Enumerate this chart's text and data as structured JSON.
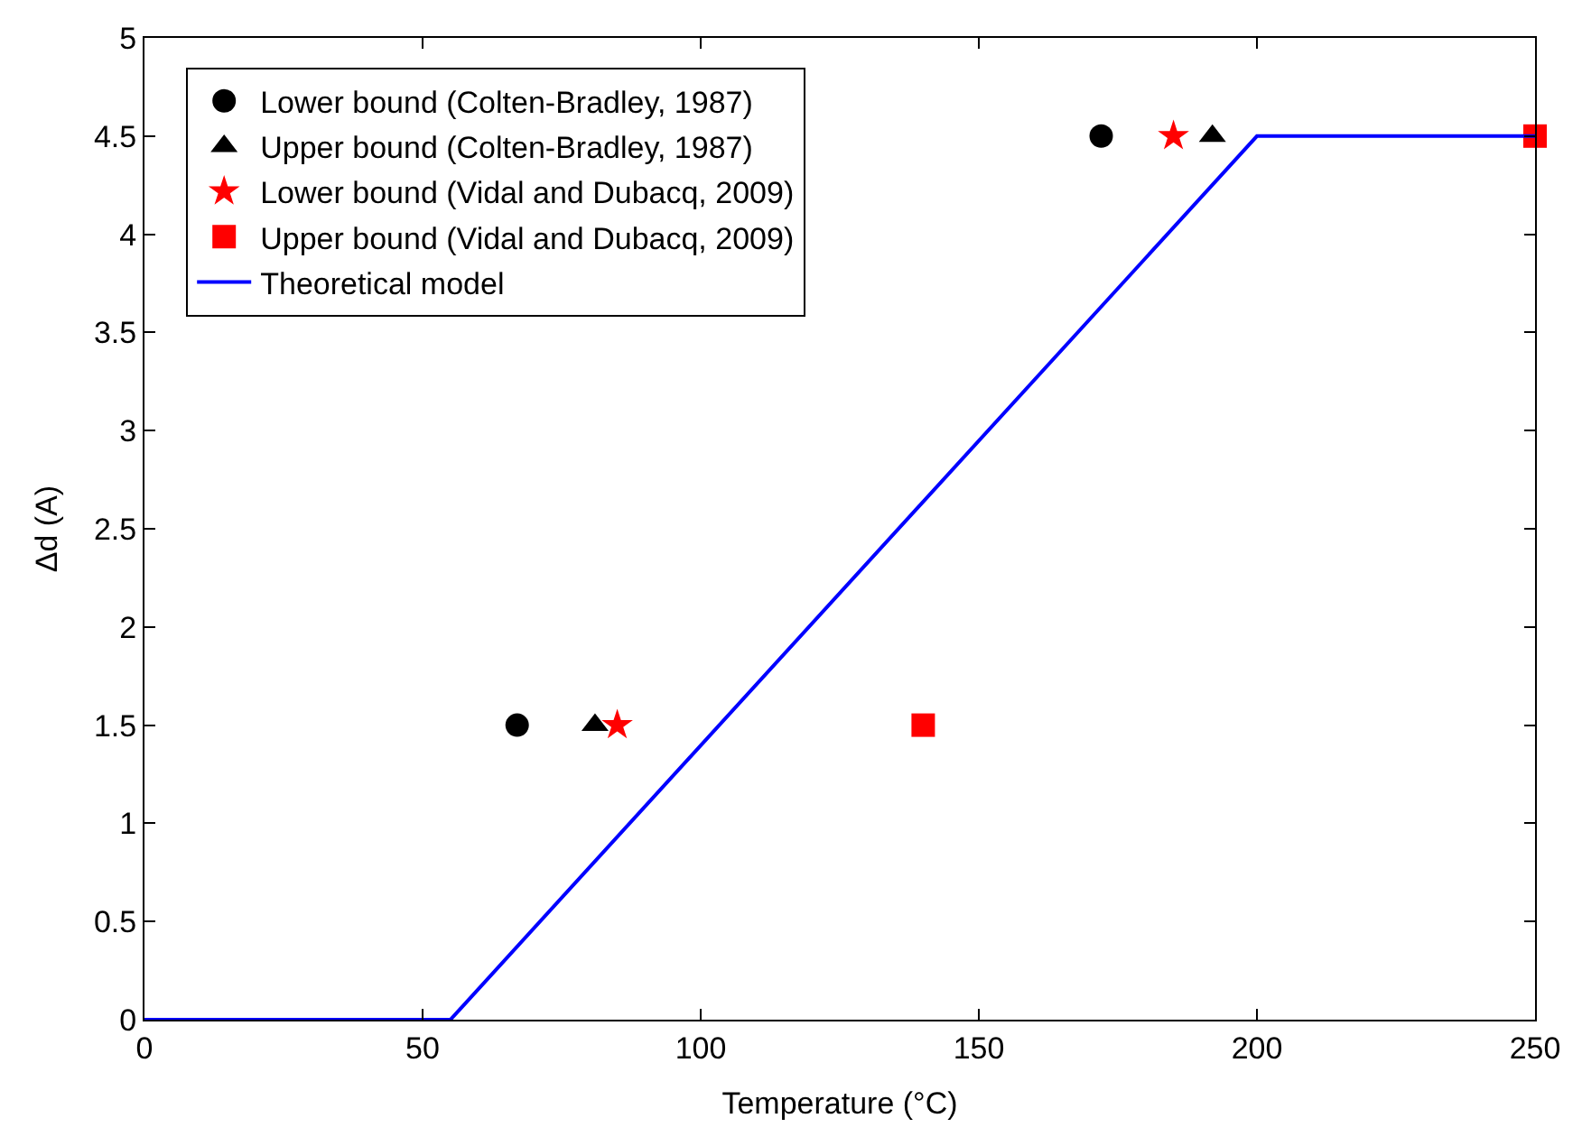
{
  "chart_data": {
    "type": "scatter",
    "xlabel": "Temperature (°C)",
    "ylabel": "Δd (A)",
    "xlim": [
      0,
      250
    ],
    "xticks": [
      0,
      50,
      100,
      150,
      200,
      250
    ],
    "ylim": [
      0,
      5
    ],
    "yticks": [
      0,
      0.5,
      1,
      1.5,
      2,
      2.5,
      3,
      3.5,
      4,
      4.5,
      5
    ],
    "legend": "top left",
    "series": [
      {
        "name": "Lower bound (Colten-Bradley, 1987)",
        "color": "#000000",
        "marker": "circle",
        "x": [
          67,
          172
        ],
        "values": [
          1.5,
          4.5
        ]
      },
      {
        "name": "Upper bound (Colten-Bradley, 1987)",
        "color": "#000000",
        "marker": "triangle",
        "x": [
          81,
          192
        ],
        "values": [
          1.5,
          4.5
        ]
      },
      {
        "name": "Lower bound (Vidal and Dubacq, 2009)",
        "color": "#ff0000",
        "marker": "star",
        "x": [
          85,
          185
        ],
        "values": [
          1.5,
          4.5
        ]
      },
      {
        "name": "Upper bound (Vidal and Dubacq, 2009)",
        "color": "#ff0000",
        "marker": "square",
        "x": [
          140,
          250
        ],
        "values": [
          1.5,
          4.5
        ]
      },
      {
        "name": "Theoretical model",
        "type": "line",
        "color": "#0000ff",
        "marker": "none",
        "line_style": "solid",
        "x": [
          0,
          55,
          200,
          250
        ],
        "values": [
          0,
          0,
          4.5,
          4.5
        ]
      }
    ]
  }
}
